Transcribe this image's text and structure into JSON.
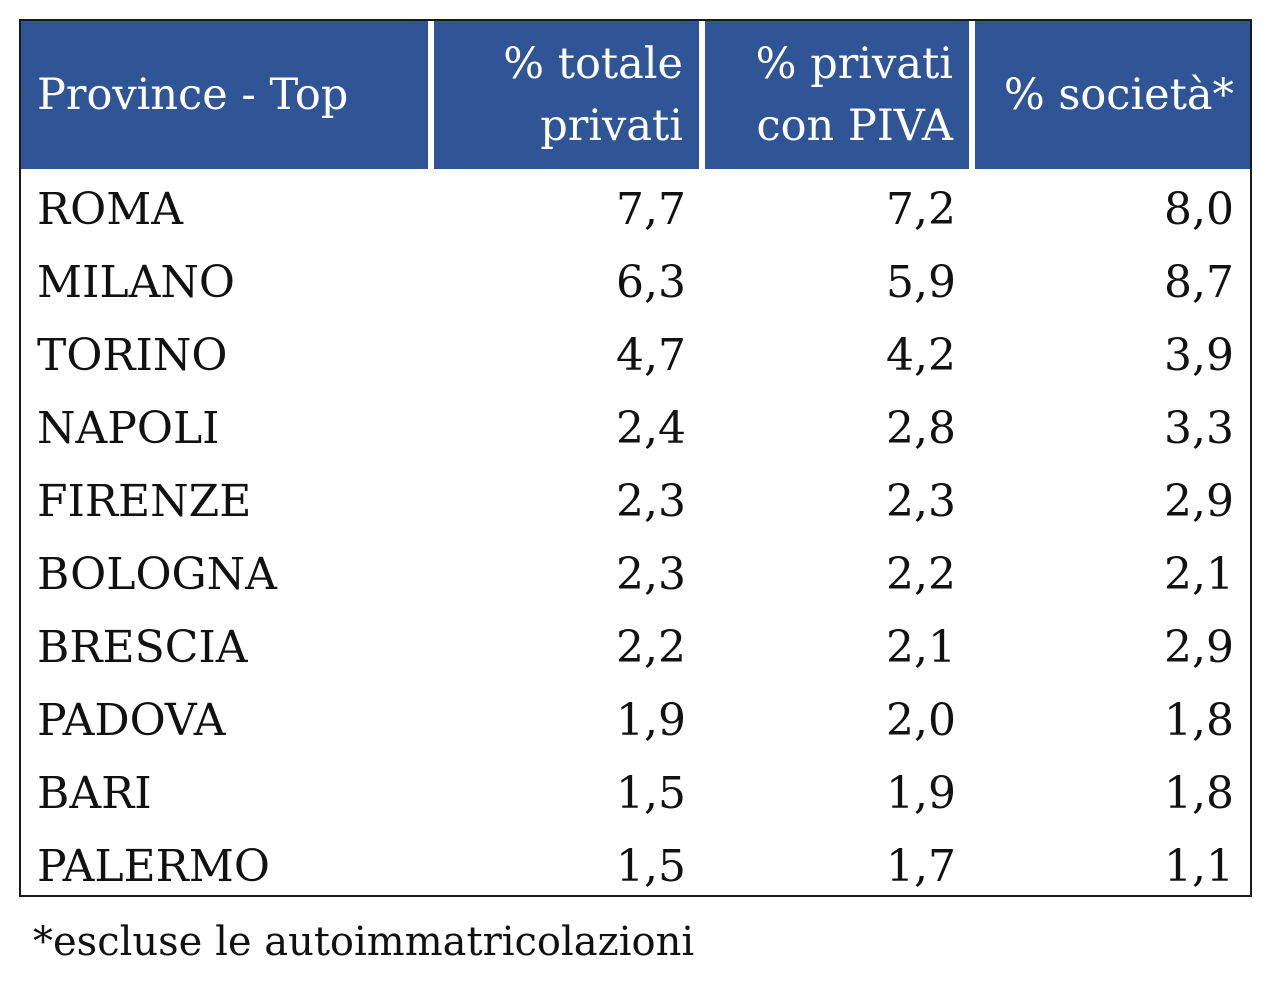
{
  "chart_data": {
    "type": "table",
    "columns": [
      "Province - Top",
      "% totale privati",
      "% privati con PIVA",
      "% società*"
    ],
    "header_lines": [
      [
        "Province - Top"
      ],
      [
        "% totale",
        "privati"
      ],
      [
        "% privati",
        "con PIVA"
      ],
      [
        "% società*"
      ]
    ],
    "rows": [
      {
        "province": "ROMA",
        "totale_privati": "7,7",
        "privati_piva": "7,2",
        "societa": "8,0"
      },
      {
        "province": "MILANO",
        "totale_privati": "6,3",
        "privati_piva": "5,9",
        "societa": "8,7"
      },
      {
        "province": "TORINO",
        "totale_privati": "4,7",
        "privati_piva": "4,2",
        "societa": "3,9"
      },
      {
        "province": "NAPOLI",
        "totale_privati": "2,4",
        "privati_piva": "2,8",
        "societa": "3,3"
      },
      {
        "province": "FIRENZE",
        "totale_privati": "2,3",
        "privati_piva": "2,3",
        "societa": "2,9"
      },
      {
        "province": "BOLOGNA",
        "totale_privati": "2,3",
        "privati_piva": "2,2",
        "societa": "2,1"
      },
      {
        "province": "BRESCIA",
        "totale_privati": "2,2",
        "privati_piva": "2,1",
        "societa": "2,9"
      },
      {
        "province": "PADOVA",
        "totale_privati": "1,9",
        "privati_piva": "2,0",
        "societa": "1,8"
      },
      {
        "province": "BARI",
        "totale_privati": "1,5",
        "privati_piva": "1,9",
        "societa": "1,8"
      },
      {
        "province": "PALERMO",
        "totale_privati": "1,5",
        "privati_piva": "1,7",
        "societa": "1,1"
      }
    ],
    "footnote": "*escluse le autoimmatricolazioni"
  },
  "colors": {
    "header_background": "#2f5597",
    "header_text": "#ffffff",
    "body_text": "#111111"
  }
}
